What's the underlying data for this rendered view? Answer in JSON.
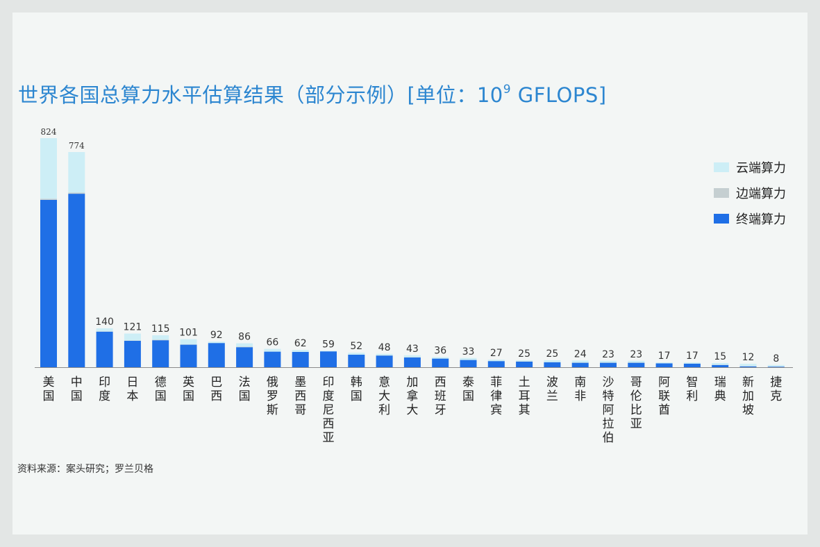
{
  "chart_data": {
    "type": "bar",
    "stacked": true,
    "title_main": "世界各国总算力水平估算结果（部分示例）[单位：10",
    "title_sup": "9",
    "title_tail": " GFLOPS]",
    "categories": [
      "美国",
      "中国",
      "印度",
      "日本",
      "德国",
      "英国",
      "巴西",
      "法国",
      "俄罗斯",
      "墨西哥",
      "印度尼西亚",
      "韩国",
      "意大利",
      "加拿大",
      "西班牙",
      "泰国",
      "菲律宾",
      "土耳其",
      "波兰",
      "南非",
      "沙特阿拉伯",
      "哥伦比亚",
      "阿联酋",
      "智利",
      "瑞典",
      "新加坡",
      "捷克"
    ],
    "totals": [
      824,
      774,
      140,
      121,
      115,
      101,
      92,
      86,
      66,
      62,
      59,
      52,
      48,
      43,
      36,
      33,
      27,
      25,
      25,
      24,
      23,
      23,
      17,
      17,
      15,
      12,
      8
    ],
    "series": [
      {
        "name": "终端算力",
        "color": "#1f6fe6",
        "values": [
          602,
          624,
          128,
          95,
          97,
          81,
          87,
          72,
          56,
          55,
          57,
          45,
          42,
          35,
          31,
          26,
          22,
          20,
          18,
          16,
          16,
          16,
          14,
          13,
          8,
          3,
          2
        ]
      },
      {
        "name": "边端算力",
        "color": "#c5cfd1",
        "values": [
          4,
          4,
          1,
          1,
          2,
          1,
          0,
          2,
          0,
          0,
          0,
          0,
          1,
          1,
          0,
          0,
          0,
          1,
          0,
          1,
          1,
          1,
          0,
          0,
          1,
          1,
          1
        ]
      },
      {
        "name": "云端算力",
        "color": "#cdeef6",
        "values": [
          218,
          146,
          11,
          25,
          16,
          19,
          5,
          12,
          10,
          7,
          2,
          7,
          5,
          7,
          5,
          7,
          5,
          4,
          7,
          7,
          6,
          6,
          3,
          4,
          6,
          8,
          5
        ]
      }
    ],
    "ylim": [
      0,
      824
    ],
    "grid": false,
    "legend_position": "right",
    "legend_order": [
      "云端算力",
      "边端算力",
      "终端算力"
    ]
  },
  "source_note": "资料来源：案头研究；罗兰贝格"
}
